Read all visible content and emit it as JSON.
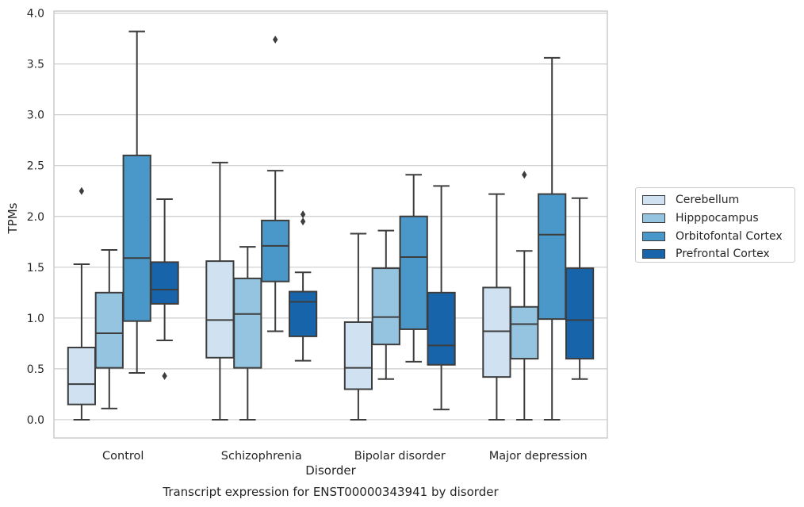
{
  "caption": "Transcript expression for ENST00000343941 by disorder",
  "chart_data": {
    "type": "box",
    "xlabel": "Disorder",
    "ylabel": "TPMs",
    "ylim": [
      -0.18,
      4.02
    ],
    "yticks": [
      0.0,
      0.5,
      1.0,
      1.5,
      2.0,
      2.5,
      3.0,
      3.5,
      4.0
    ],
    "ytick_labels": [
      "0.0",
      "0.5",
      "1.0",
      "1.5",
      "2.0",
      "2.5",
      "3.0",
      "3.5",
      "4.0"
    ],
    "grid": "horizontal",
    "legend_position": "right",
    "categories": [
      "Control",
      "Schizophrenia",
      "Bipolar disorder",
      "Major depression"
    ],
    "series": [
      {
        "name": "Cerebellum",
        "color": "#d0e1f2",
        "boxes": [
          {
            "whislo": 0.0,
            "q1": 0.15,
            "med": 0.35,
            "q3": 0.71,
            "whishi": 1.53,
            "fliers": [
              2.25
            ]
          },
          {
            "whislo": 0.0,
            "q1": 0.61,
            "med": 0.98,
            "q3": 1.56,
            "whishi": 2.53,
            "fliers": []
          },
          {
            "whislo": 0.0,
            "q1": 0.3,
            "med": 0.51,
            "q3": 0.96,
            "whishi": 1.83,
            "fliers": []
          },
          {
            "whislo": 0.0,
            "q1": 0.42,
            "med": 0.87,
            "q3": 1.3,
            "whishi": 2.22,
            "fliers": []
          }
        ]
      },
      {
        "name": "Hipppocampus",
        "color": "#94c4df",
        "boxes": [
          {
            "whislo": 0.11,
            "q1": 0.51,
            "med": 0.85,
            "q3": 1.25,
            "whishi": 1.67,
            "fliers": []
          },
          {
            "whislo": 0.0,
            "q1": 0.51,
            "med": 1.04,
            "q3": 1.39,
            "whishi": 1.7,
            "fliers": []
          },
          {
            "whislo": 0.4,
            "q1": 0.74,
            "med": 1.01,
            "q3": 1.49,
            "whishi": 1.86,
            "fliers": []
          },
          {
            "whislo": 0.0,
            "q1": 0.6,
            "med": 0.94,
            "q3": 1.11,
            "whishi": 1.66,
            "fliers": [
              2.41
            ]
          }
        ]
      },
      {
        "name": "Orbitofontal Cortex",
        "color": "#4a98c9",
        "boxes": [
          {
            "whislo": 0.46,
            "q1": 0.97,
            "med": 1.59,
            "q3": 2.6,
            "whishi": 3.82,
            "fliers": []
          },
          {
            "whislo": 0.87,
            "q1": 1.36,
            "med": 1.71,
            "q3": 1.96,
            "whishi": 2.45,
            "fliers": [
              3.74
            ]
          },
          {
            "whislo": 0.57,
            "q1": 0.89,
            "med": 1.6,
            "q3": 2.0,
            "whishi": 2.41,
            "fliers": []
          },
          {
            "whislo": 0.0,
            "q1": 0.99,
            "med": 1.82,
            "q3": 2.22,
            "whishi": 3.56,
            "fliers": []
          }
        ]
      },
      {
        "name": "Prefrontal Cortex",
        "color": "#1764ab",
        "boxes": [
          {
            "whislo": 0.78,
            "q1": 1.14,
            "med": 1.28,
            "q3": 1.55,
            "whishi": 2.17,
            "fliers": [
              0.43
            ]
          },
          {
            "whislo": 0.58,
            "q1": 0.82,
            "med": 1.16,
            "q3": 1.26,
            "whishi": 1.45,
            "fliers": [
              1.95,
              2.02
            ]
          },
          {
            "whislo": 0.1,
            "q1": 0.54,
            "med": 0.73,
            "q3": 1.25,
            "whishi": 2.3,
            "fliers": []
          },
          {
            "whislo": 0.4,
            "q1": 0.6,
            "med": 0.98,
            "q3": 1.49,
            "whishi": 2.18,
            "fliers": []
          }
        ]
      }
    ]
  }
}
